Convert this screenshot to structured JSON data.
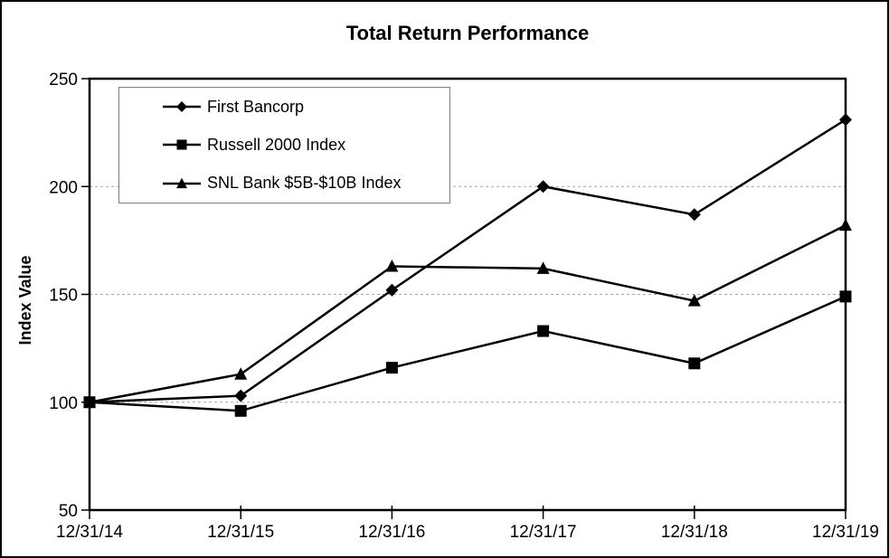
{
  "page": {
    "background_color": "#ffffff",
    "frame_border_color": "#000000"
  },
  "chart_data": {
    "type": "line",
    "title": "Total Return Performance",
    "xlabel": "",
    "ylabel": "Index Value",
    "categories": [
      "12/31/14",
      "12/31/15",
      "12/31/16",
      "12/31/17",
      "12/31/18",
      "12/31/19"
    ],
    "series": [
      {
        "name": "First Bancorp",
        "marker": "diamond",
        "color": "#000000",
        "values": [
          100,
          103,
          152,
          200,
          187,
          231
        ]
      },
      {
        "name": "Russell 2000 Index",
        "marker": "square",
        "color": "#000000",
        "values": [
          100,
          96,
          116,
          133,
          118,
          149
        ]
      },
      {
        "name": "SNL Bank $5B-$10B Index",
        "marker": "triangle",
        "color": "#000000",
        "values": [
          100,
          113,
          163,
          162,
          147,
          182
        ]
      }
    ],
    "ylim": [
      50,
      250
    ],
    "yticks": [
      50,
      100,
      150,
      200,
      250
    ],
    "gridline_values": [
      100,
      150,
      200
    ],
    "grid_on": true,
    "grid_color": "#a6a6a6",
    "axis_color": "#000000",
    "legend_position": "top-left-inside",
    "legend_border_color": "#808080",
    "legend_background": "#ffffff"
  }
}
